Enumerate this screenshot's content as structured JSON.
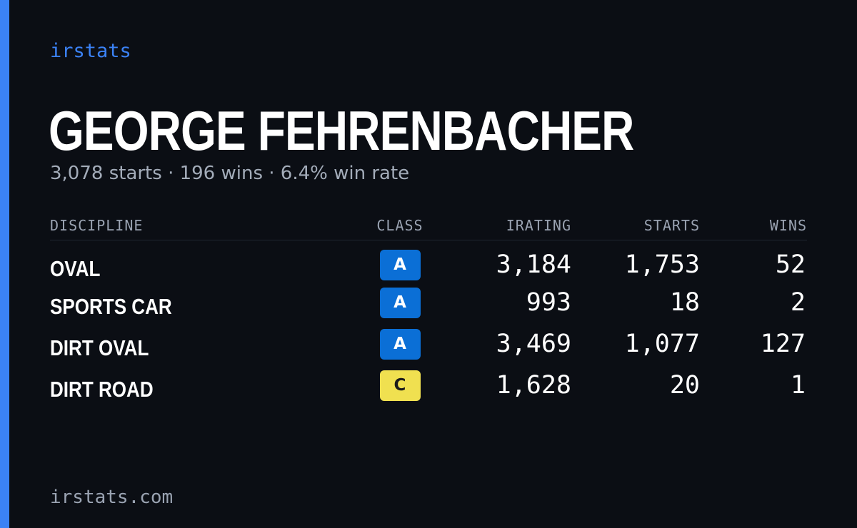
{
  "brand": "irstats",
  "driver": {
    "name": "GEORGE FEHRENBACHER",
    "summary": "3,078 starts · 196 wins · 6.4% win rate"
  },
  "table": {
    "headers": {
      "discipline": "DISCIPLINE",
      "class": "CLASS",
      "irating": "IRATING",
      "starts": "STARTS",
      "wins": "WINS"
    },
    "rows": [
      {
        "discipline": "OVAL",
        "class": "A",
        "class_color": "#0b6fd6",
        "class_text_color": "#ffffff",
        "irating": "3,184",
        "starts": "1,753",
        "wins": "52"
      },
      {
        "discipline": "SPORTS CAR",
        "class": "A",
        "class_color": "#0b6fd6",
        "class_text_color": "#ffffff",
        "irating": "993",
        "starts": "18",
        "wins": "2"
      },
      {
        "discipline": "DIRT OVAL",
        "class": "A",
        "class_color": "#0b6fd6",
        "class_text_color": "#ffffff",
        "irating": "3,469",
        "starts": "1,077",
        "wins": "127"
      },
      {
        "discipline": "DIRT ROAD",
        "class": "C",
        "class_color": "#f0e050",
        "class_text_color": "#1a1a1a",
        "irating": "1,628",
        "starts": "20",
        "wins": "1"
      }
    ]
  },
  "footer": "irstats.com",
  "colors": {
    "background": "#0b0e14",
    "accent": "#3b82f6",
    "muted_text": "#a3acb9"
  }
}
